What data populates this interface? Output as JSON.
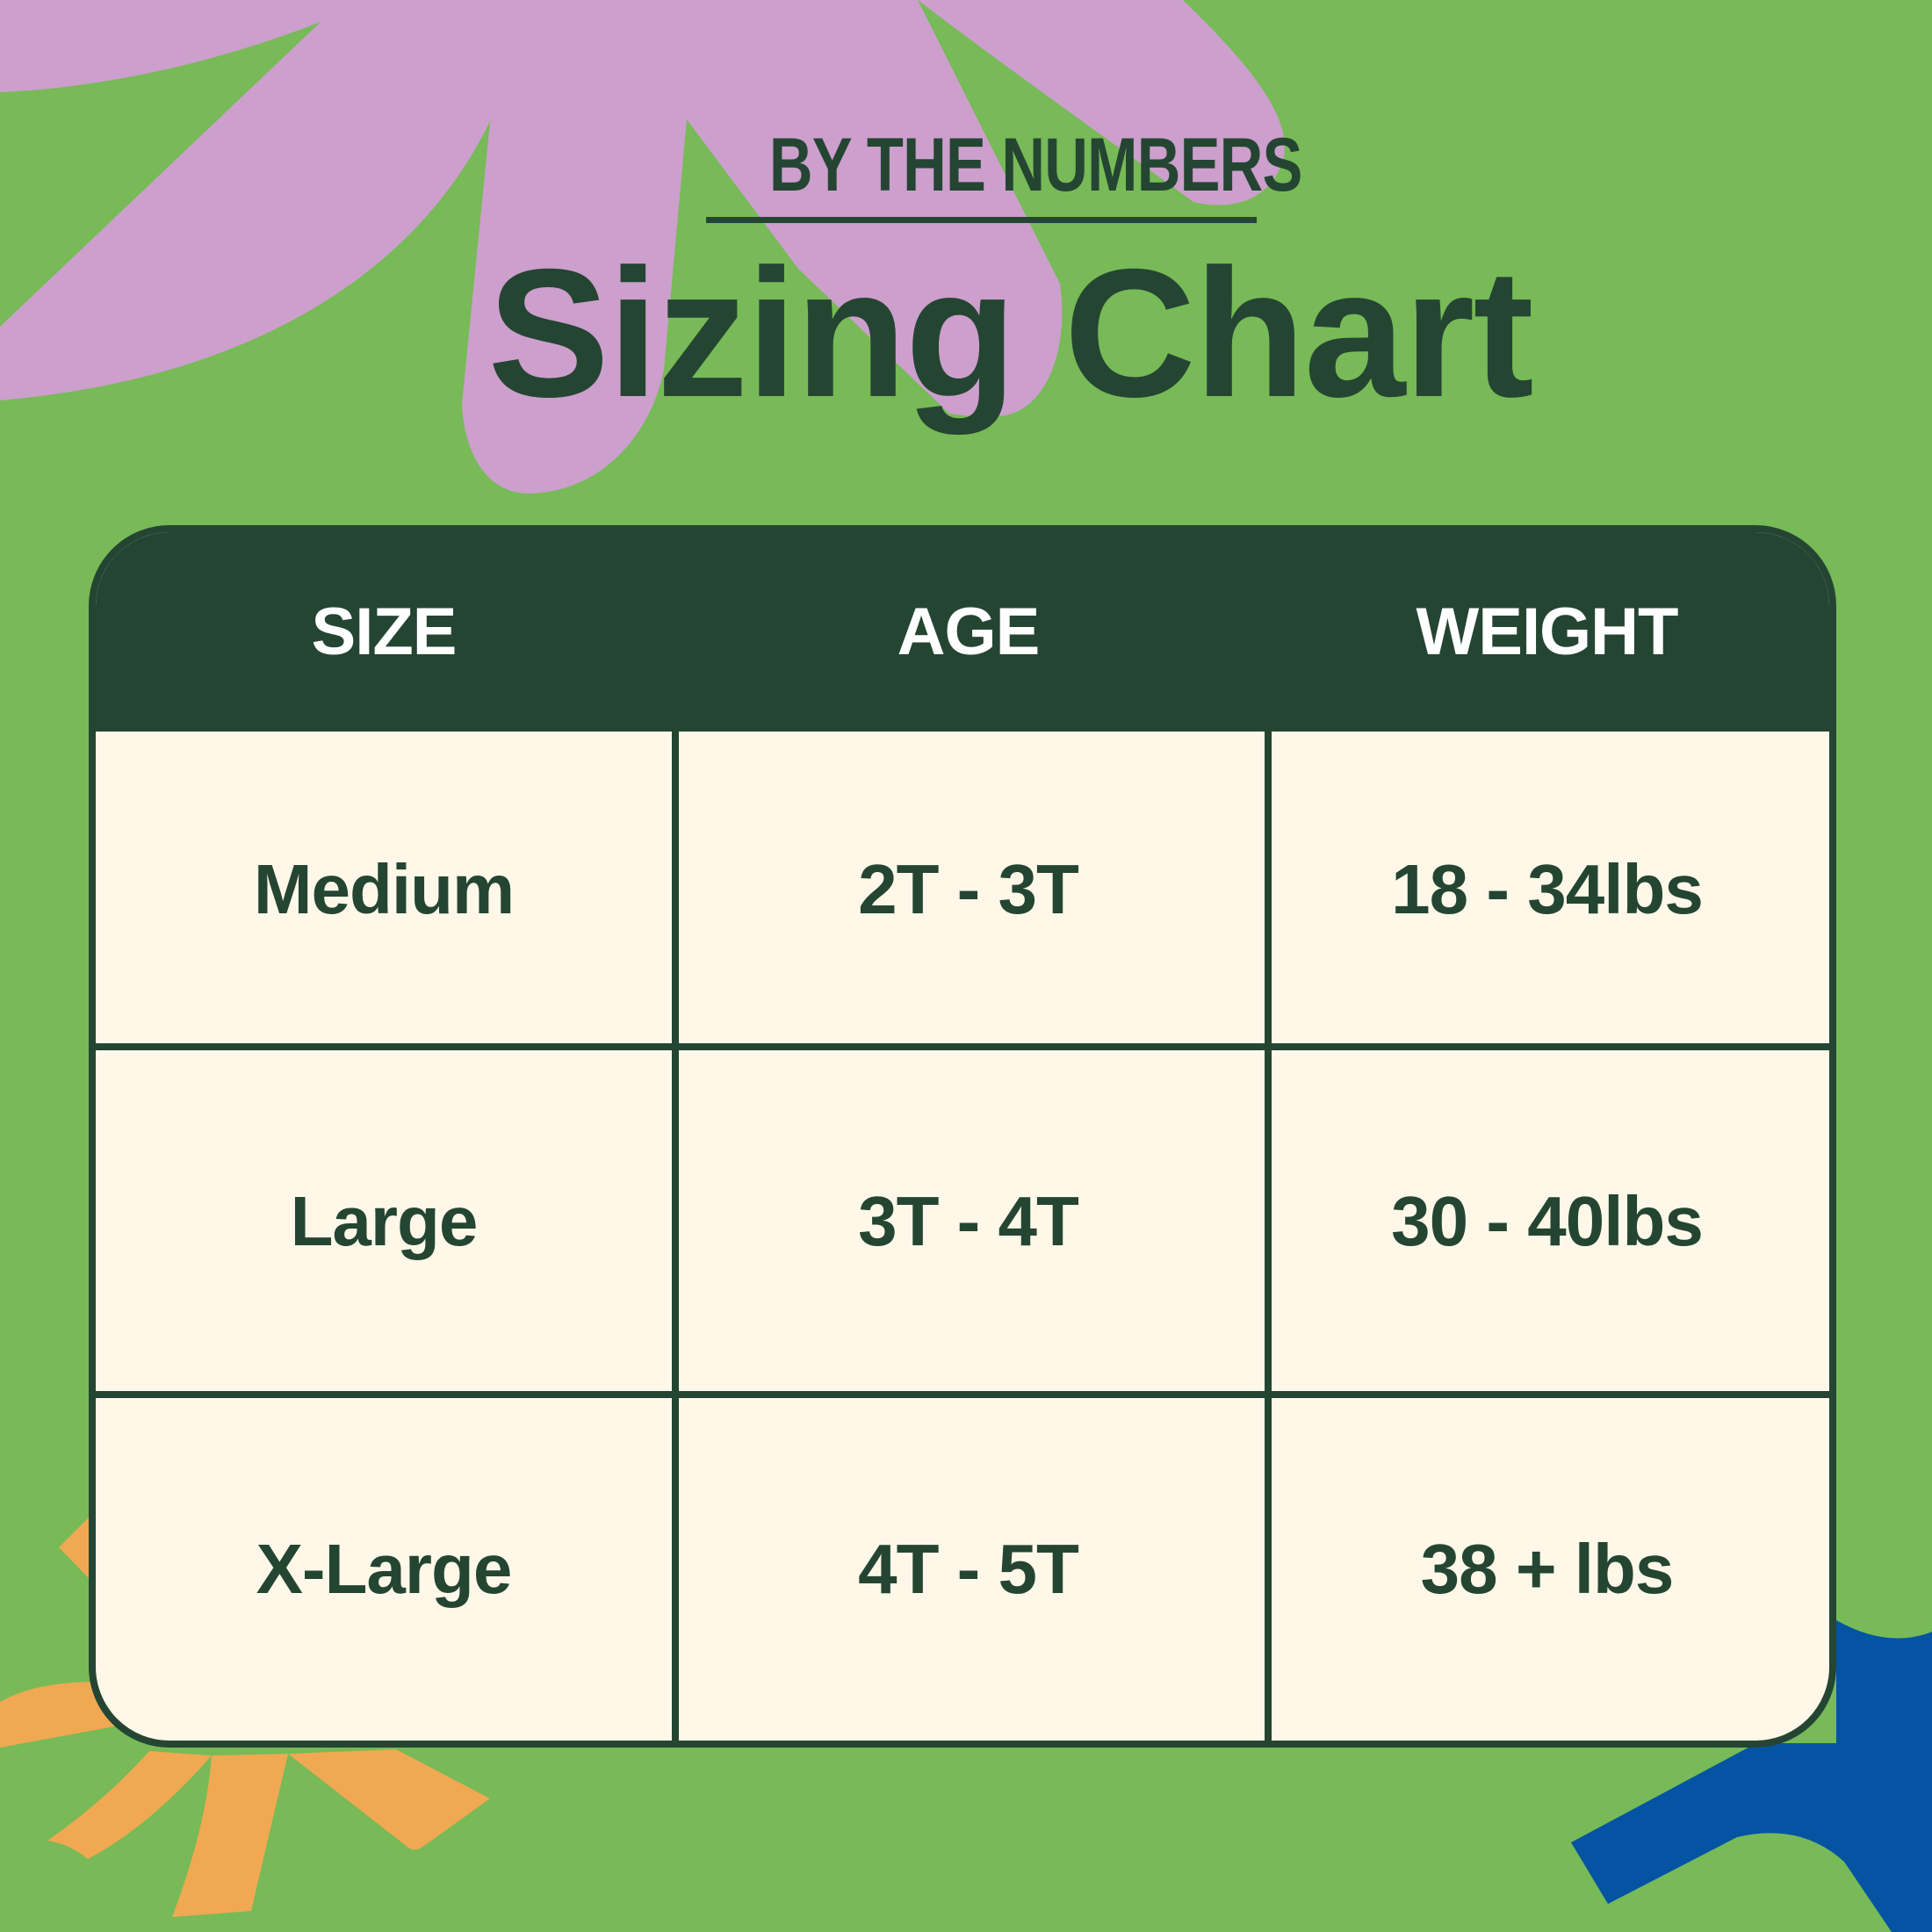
{
  "colors": {
    "background": "#77BA57",
    "dark_green": "#254533",
    "cream": "#FFF8E8",
    "lavender": "#CC9FCC",
    "orange": "#F0A852",
    "blue": "#0554A4"
  },
  "header": {
    "kicker": "BY THE NUMBERS",
    "title": "Sizing Chart"
  },
  "table": {
    "columns": [
      "SIZE",
      "AGE",
      "WEIGHT"
    ],
    "rows": [
      [
        "Medium",
        "2T - 3T",
        "18 - 34lbs"
      ],
      [
        "Large",
        "3T - 4T",
        "30 - 40lbs"
      ],
      [
        "X-Large",
        "4T - 5T",
        "38 + lbs"
      ]
    ]
  }
}
